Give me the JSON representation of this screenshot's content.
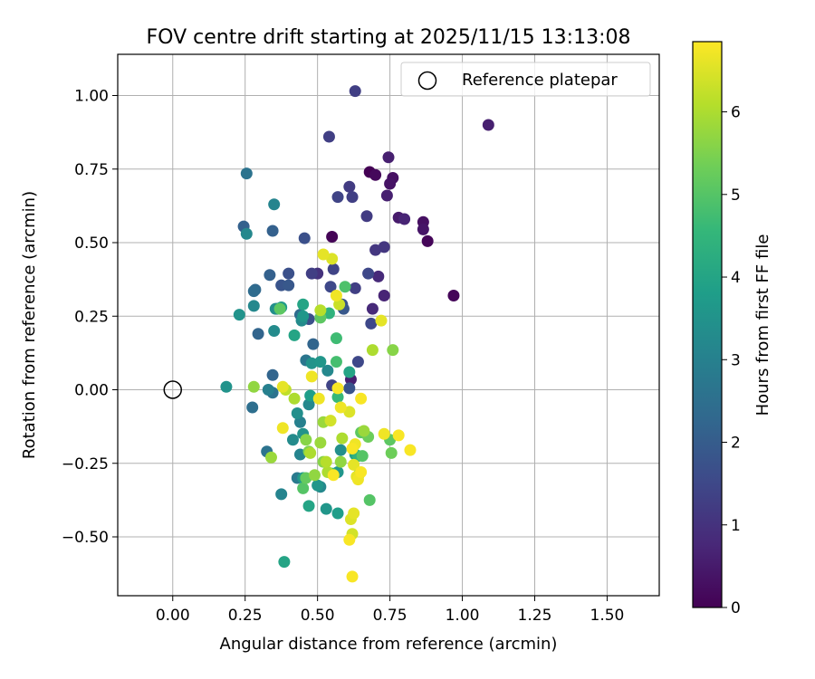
{
  "chart_data": {
    "type": "scatter",
    "title": "FOV centre drift starting at 2025/11/15 13:13:08",
    "xlabel": "Angular distance from reference (arcmin)",
    "ylabel": "Rotation from reference (arcmin)",
    "xlim": [
      -0.19,
      1.68
    ],
    "ylim": [
      -0.7,
      1.14
    ],
    "x_ticks": [
      0.0,
      0.25,
      0.5,
      0.75,
      1.0,
      1.25,
      1.5
    ],
    "x_tick_labels": [
      "0.00",
      "0.25",
      "0.50",
      "0.75",
      "1.00",
      "1.25",
      "1.50"
    ],
    "y_ticks": [
      -0.5,
      -0.25,
      0.0,
      0.25,
      0.5,
      0.75,
      1.0
    ],
    "y_tick_labels": [
      "−0.50",
      "−0.25",
      "0.00",
      "0.25",
      "0.50",
      "0.75",
      "1.00"
    ],
    "grid": true,
    "legend": {
      "position": "top-right",
      "label": "Reference platepar"
    },
    "reference_point": {
      "x": 0.0,
      "y": 0.0
    },
    "colorbar": {
      "label": "Hours from first FF file",
      "range": [
        0,
        6.85
      ],
      "ticks": [
        0,
        1,
        2,
        3,
        4,
        5,
        6
      ],
      "colormap": [
        "#440154",
        "#482878",
        "#3e4989",
        "#31688e",
        "#26828e",
        "#1f9e89",
        "#35b779",
        "#6ece58",
        "#b5de2b",
        "#fde725"
      ]
    },
    "points": [
      [
        0.68,
        0.74,
        0.0
      ],
      [
        0.55,
        0.52,
        0.05
      ],
      [
        0.7,
        0.73,
        0.15
      ],
      [
        0.88,
        0.505,
        0.1
      ],
      [
        0.97,
        0.32,
        0.1
      ],
      [
        0.76,
        0.72,
        0.3
      ],
      [
        0.75,
        0.7,
        0.35
      ],
      [
        0.865,
        0.57,
        0.3
      ],
      [
        0.865,
        0.545,
        0.4
      ],
      [
        0.78,
        0.585,
        0.5
      ],
      [
        1.09,
        0.9,
        0.6
      ],
      [
        0.745,
        0.79,
        0.6
      ],
      [
        0.74,
        0.66,
        0.6
      ],
      [
        0.73,
        0.32,
        0.7
      ],
      [
        0.8,
        0.58,
        0.7
      ],
      [
        0.71,
        0.385,
        0.8
      ],
      [
        0.69,
        0.275,
        0.8
      ],
      [
        0.615,
        0.035,
        0.6
      ],
      [
        0.63,
        1.015,
        1.3
      ],
      [
        0.54,
        0.86,
        1.3
      ],
      [
        0.61,
        0.69,
        1.2
      ],
      [
        0.73,
        0.485,
        1.1
      ],
      [
        0.7,
        0.475,
        1.1
      ],
      [
        0.57,
        0.655,
        1.4
      ],
      [
        0.62,
        0.655,
        1.3
      ],
      [
        0.67,
        0.59,
        1.2
      ],
      [
        0.5,
        0.395,
        1.0
      ],
      [
        0.48,
        0.395,
        1.3
      ],
      [
        0.555,
        0.41,
        1.4
      ],
      [
        0.63,
        0.345,
        1.3
      ],
      [
        0.685,
        0.225,
        1.5
      ],
      [
        0.64,
        0.095,
        1.5
      ],
      [
        0.61,
        0.005,
        1.8
      ],
      [
        0.55,
        0.015,
        1.4
      ],
      [
        0.675,
        0.395,
        1.5
      ],
      [
        0.545,
        0.35,
        1.5
      ],
      [
        0.585,
        0.29,
        1.8
      ],
      [
        0.59,
        0.275,
        1.9
      ],
      [
        0.47,
        0.24,
        1.7
      ],
      [
        0.455,
        0.515,
        1.7
      ],
      [
        0.4,
        0.395,
        1.7
      ],
      [
        0.375,
        0.355,
        1.8
      ],
      [
        0.4,
        0.355,
        1.9
      ],
      [
        0.335,
        0.39,
        2.1
      ],
      [
        0.345,
        0.54,
        2.1
      ],
      [
        0.285,
        0.34,
        2.3
      ],
      [
        0.28,
        0.335,
        2.4
      ],
      [
        0.36,
        0.275,
        2.5
      ],
      [
        0.295,
        0.19,
        2.2
      ],
      [
        0.44,
        0.255,
        2.4
      ],
      [
        0.485,
        0.155,
        2.2
      ],
      [
        0.46,
        0.1,
        2.7
      ],
      [
        0.345,
        0.05,
        2.2
      ],
      [
        0.345,
        -0.01,
        2.6
      ],
      [
        0.275,
        -0.06,
        2.5
      ],
      [
        0.325,
        -0.21,
        2.6
      ],
      [
        0.43,
        -0.3,
        2.8
      ],
      [
        0.375,
        -0.355,
        3.1
      ],
      [
        0.245,
        0.555,
        2.1
      ],
      [
        0.255,
        0.735,
        2.6
      ],
      [
        0.35,
        0.63,
        3.1
      ],
      [
        0.255,
        0.53,
        3.2
      ],
      [
        0.23,
        0.255,
        3.5
      ],
      [
        0.28,
        0.285,
        3.2
      ],
      [
        0.35,
        0.2,
        3.3
      ],
      [
        0.355,
        0.275,
        3.4
      ],
      [
        0.375,
        0.28,
        3.7
      ],
      [
        0.445,
        0.235,
        3.3
      ],
      [
        0.42,
        0.185,
        4.0
      ],
      [
        0.45,
        0.29,
        4.0
      ],
      [
        0.45,
        0.25,
        3.6
      ],
      [
        0.48,
        0.09,
        3.5
      ],
      [
        0.51,
        0.095,
        3.6
      ],
      [
        0.535,
        0.065,
        3.2
      ],
      [
        0.61,
        0.06,
        4.0
      ],
      [
        0.185,
        0.01,
        3.5
      ],
      [
        0.33,
        0.0,
        3.0
      ],
      [
        0.43,
        -0.08,
        3.4
      ],
      [
        0.44,
        -0.11,
        3.0
      ],
      [
        0.47,
        -0.05,
        3.2
      ],
      [
        0.475,
        -0.02,
        3.8
      ],
      [
        0.45,
        -0.15,
        3.5
      ],
      [
        0.415,
        -0.17,
        3.3
      ],
      [
        0.44,
        -0.22,
        3.1
      ],
      [
        0.45,
        -0.3,
        3.7
      ],
      [
        0.51,
        -0.33,
        3.2
      ],
      [
        0.5,
        -0.325,
        3.6
      ],
      [
        0.53,
        -0.405,
        3.6
      ],
      [
        0.57,
        -0.42,
        3.8
      ],
      [
        0.47,
        -0.395,
        4.0
      ],
      [
        0.57,
        -0.28,
        3.6
      ],
      [
        0.58,
        -0.205,
        3.4
      ],
      [
        0.63,
        -0.22,
        4.0
      ],
      [
        0.64,
        -0.225,
        4.4
      ],
      [
        0.55,
        -0.285,
        4.6
      ],
      [
        0.385,
        -0.585,
        4.0
      ],
      [
        0.54,
        0.26,
        4.4
      ],
      [
        0.565,
        0.175,
        4.7
      ],
      [
        0.595,
        0.35,
        4.9
      ],
      [
        0.565,
        0.095,
        4.8
      ],
      [
        0.57,
        -0.025,
        4.6
      ],
      [
        0.645,
        -0.285,
        4.8
      ],
      [
        0.68,
        -0.375,
        5.0
      ],
      [
        0.655,
        -0.225,
        5.0
      ],
      [
        0.65,
        -0.145,
        5.1
      ],
      [
        0.45,
        -0.335,
        5.0
      ],
      [
        0.46,
        -0.3,
        5.2
      ],
      [
        0.37,
        0.275,
        5.1
      ],
      [
        0.51,
        0.245,
        5.1
      ],
      [
        0.75,
        -0.17,
        5.1
      ],
      [
        0.755,
        -0.215,
        5.3
      ],
      [
        0.675,
        -0.16,
        5.3
      ],
      [
        0.76,
        0.135,
        5.6
      ],
      [
        0.69,
        0.135,
        6.0
      ],
      [
        0.66,
        -0.14,
        5.8
      ],
      [
        0.47,
        -0.21,
        5.5
      ],
      [
        0.46,
        -0.17,
        5.6
      ],
      [
        0.51,
        -0.18,
        5.8
      ],
      [
        0.52,
        -0.245,
        5.6
      ],
      [
        0.49,
        -0.29,
        5.7
      ],
      [
        0.475,
        -0.215,
        6.0
      ],
      [
        0.52,
        -0.11,
        5.8
      ],
      [
        0.53,
        -0.245,
        6.1
      ],
      [
        0.58,
        -0.245,
        5.7
      ],
      [
        0.585,
        -0.165,
        6.0
      ],
      [
        0.535,
        -0.28,
        6.0
      ],
      [
        0.42,
        -0.03,
        6.0
      ],
      [
        0.28,
        0.01,
        5.7
      ],
      [
        0.34,
        -0.23,
        5.8
      ],
      [
        0.39,
        0.0,
        6.2
      ],
      [
        0.51,
        0.27,
        6.1
      ],
      [
        0.575,
        0.29,
        6.3
      ],
      [
        0.72,
        0.235,
        6.6
      ],
      [
        0.55,
        0.445,
        6.5
      ],
      [
        0.52,
        0.46,
        6.6
      ],
      [
        0.565,
        0.32,
        6.7
      ],
      [
        0.38,
        0.01,
        6.6
      ],
      [
        0.38,
        -0.13,
        6.7
      ],
      [
        0.48,
        0.045,
        6.7
      ],
      [
        0.505,
        -0.03,
        6.7
      ],
      [
        0.57,
        0.005,
        6.8
      ],
      [
        0.63,
        -0.185,
        6.7
      ],
      [
        0.62,
        -0.2,
        6.8
      ],
      [
        0.625,
        -0.255,
        6.6
      ],
      [
        0.635,
        -0.295,
        6.6
      ],
      [
        0.625,
        -0.42,
        6.6
      ],
      [
        0.615,
        -0.44,
        6.5
      ],
      [
        0.62,
        -0.49,
        6.4
      ],
      [
        0.61,
        -0.51,
        6.8
      ],
      [
        0.62,
        -0.635,
        6.8
      ],
      [
        0.65,
        -0.28,
        6.8
      ],
      [
        0.64,
        -0.305,
        6.7
      ],
      [
        0.65,
        -0.03,
        6.8
      ],
      [
        0.58,
        -0.06,
        6.7
      ],
      [
        0.61,
        -0.075,
        6.5
      ],
      [
        0.555,
        -0.29,
        6.8
      ],
      [
        0.82,
        -0.205,
        6.8
      ],
      [
        0.73,
        -0.15,
        6.7
      ],
      [
        0.78,
        -0.155,
        6.8
      ],
      [
        0.545,
        -0.105,
        6.4
      ]
    ]
  }
}
